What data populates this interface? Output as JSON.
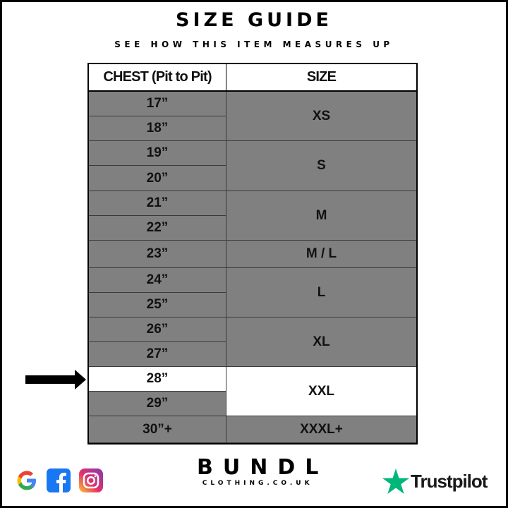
{
  "title": "SIZE GUIDE",
  "subtitle": "SEE HOW THIS ITEM MEASURES UP",
  "table": {
    "headers": [
      "CHEST (Pit to Pit)",
      "SIZE"
    ],
    "highlighted_chest": "28”",
    "highlighted_size": "XXL",
    "groups": [
      {
        "size": "XS",
        "chest": [
          "17”",
          "18”"
        ]
      },
      {
        "size": "S",
        "chest": [
          "19”",
          "20”"
        ]
      },
      {
        "size": "M",
        "chest": [
          "21”",
          "22”"
        ]
      },
      {
        "size": "M / L",
        "chest": [
          "23”"
        ]
      },
      {
        "size": "L",
        "chest": [
          "24”",
          "25”"
        ]
      },
      {
        "size": "XL",
        "chest": [
          "26”",
          "27”"
        ]
      },
      {
        "size": "XXL",
        "chest": [
          "28”",
          "29”"
        ]
      },
      {
        "size": "XXXL+",
        "chest": [
          "30”+"
        ]
      }
    ]
  },
  "footer": {
    "brand": "BUNDL",
    "domain": "CLOTHING.CO.UK",
    "trustpilot": "Trustpilot",
    "social_icons": [
      "google-icon",
      "facebook-icon",
      "instagram-icon"
    ]
  },
  "colors": {
    "cell": "#808080",
    "highlight": "#ffffff",
    "trustpilot_star": "#00b67a"
  }
}
